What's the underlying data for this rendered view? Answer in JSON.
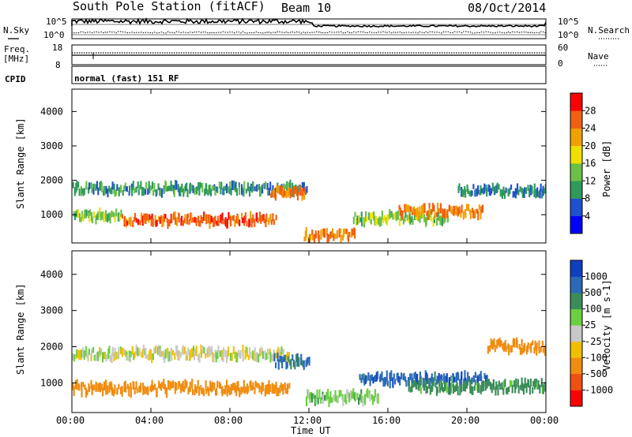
{
  "header": {
    "station": "South Pole Station (fitACF)",
    "beam": "Beam 10",
    "date": "08/Oct/2014"
  },
  "top_panels": {
    "nsky_label": "N.Sky",
    "nsky_ticks": [
      "10^5",
      "10^0"
    ],
    "nsearch_label": "N.Search",
    "nsearch_ticks": [
      "10^5",
      "10^0"
    ],
    "freq_label": "Freq.",
    "freq_unit": "[MHz]",
    "freq_ticks": [
      "18",
      "8"
    ],
    "nave_label": "Nave",
    "nave_ticks": [
      "60",
      "0"
    ],
    "cpid_label": "CPID",
    "cpid_text": "normal (fast) 151 RF"
  },
  "chart_data": [
    {
      "type": "heatmap",
      "name": "power",
      "ylabel": "Slant Range [km]",
      "xlabel": "Time UT",
      "xlim": [
        0,
        24
      ],
      "ylim": [
        180,
        4650
      ],
      "x_ticks": [
        "00:00",
        "04:00",
        "08:00",
        "12:00",
        "16:00",
        "20:00",
        "00:00"
      ],
      "y_ticks": [
        1000,
        2000,
        3000,
        4000
      ],
      "colorbar": {
        "label": "Power [dB]",
        "ticks": [
          "4",
          "8",
          "12",
          "16",
          "20",
          "24",
          "28"
        ],
        "colors": [
          "#0000ff",
          "#2050d0",
          "#2f9a5c",
          "#6cc048",
          "#f0e000",
          "#f0a000",
          "#f06010",
          "#ff0000"
        ]
      },
      "features": [
        {
          "t_start": 0.0,
          "t_end": 11.9,
          "range_km": 1750,
          "value_db": 10
        },
        {
          "t_start": 0.0,
          "t_end": 2.5,
          "range_km": 950,
          "value_db": 14
        },
        {
          "t_start": 2.5,
          "t_end": 10.3,
          "range_km": 850,
          "value_db": 26
        },
        {
          "t_start": 10.0,
          "t_end": 11.8,
          "range_km": 1650,
          "value_db": 24
        },
        {
          "t_start": 11.7,
          "t_end": 14.3,
          "range_km": 400,
          "value_db": 24
        },
        {
          "t_start": 14.2,
          "t_end": 19.0,
          "range_km": 900,
          "value_db": 14
        },
        {
          "t_start": 16.5,
          "t_end": 20.8,
          "range_km": 1100,
          "value_db": 24
        },
        {
          "t_start": 19.5,
          "t_end": 24.0,
          "range_km": 1700,
          "value_db": 8
        }
      ]
    },
    {
      "type": "heatmap",
      "name": "velocity",
      "ylabel": "Slant Range [km]",
      "xlabel": "Time UT",
      "xlim": [
        0,
        24
      ],
      "ylim": [
        180,
        4650
      ],
      "x_ticks": [
        "00:00",
        "04:00",
        "08:00",
        "12:00",
        "16:00",
        "20:00",
        "00:00"
      ],
      "y_ticks": [
        1000,
        2000,
        3000,
        4000
      ],
      "colorbar": {
        "label": "Velocity [m s-1]",
        "ticks": [
          "1000",
          "500",
          "100",
          "25",
          "-25",
          "-100",
          "-500",
          "-1000"
        ],
        "colors": [
          "#1040c0",
          "#2a6ab8",
          "#3c8c5a",
          "#6ad040",
          "#c8c8c8",
          "#f0c000",
          "#f08c10",
          "#f05010",
          "#ff0000"
        ]
      },
      "features": [
        {
          "t_start": 0.0,
          "t_end": 11.0,
          "range_km": 1800,
          "value_ms": 0
        },
        {
          "t_start": 0.0,
          "t_end": 11.0,
          "range_km": 850,
          "value_ms": -300
        },
        {
          "t_start": 10.2,
          "t_end": 12.0,
          "range_km": 1600,
          "value_ms": 700
        },
        {
          "t_start": 11.8,
          "t_end": 15.5,
          "range_km": 600,
          "value_ms": 60
        },
        {
          "t_start": 14.5,
          "t_end": 21.0,
          "range_km": 1100,
          "value_ms": 800
        },
        {
          "t_start": 17.0,
          "t_end": 24.0,
          "range_km": 900,
          "value_ms": 150
        },
        {
          "t_start": 21.0,
          "t_end": 24.0,
          "range_km": 2000,
          "value_ms": -200
        }
      ]
    }
  ]
}
